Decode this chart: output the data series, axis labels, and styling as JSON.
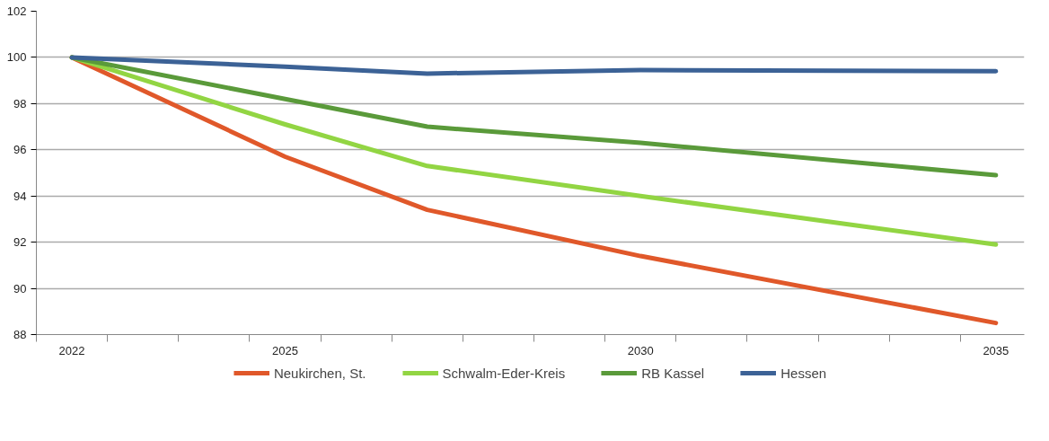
{
  "chart_data": {
    "type": "line",
    "x": [
      2022,
      2025,
      2027,
      2030,
      2035
    ],
    "series": [
      {
        "name": "Neukirchen, St.",
        "color": "#e0582a",
        "values": [
          100,
          95.7,
          93.4,
          91.4,
          88.5
        ]
      },
      {
        "name": "Schwalm-Eder-Kreis",
        "color": "#92d543",
        "values": [
          100,
          97.1,
          95.3,
          94.0,
          91.9
        ]
      },
      {
        "name": "RB Kassel",
        "color": "#5a9a3a",
        "values": [
          100,
          98.2,
          97.0,
          96.3,
          94.9
        ]
      },
      {
        "name": "Hessen",
        "color": "#3c6296",
        "values": [
          100,
          99.6,
          99.3,
          99.45,
          99.4
        ]
      }
    ],
    "xlim": [
      2021.5,
      2035.4
    ],
    "xticks": [
      {
        "value": 2021.5,
        "label": null
      },
      2022,
      {
        "value": 2022.5,
        "label": null
      },
      {
        "value": 2023.5,
        "label": null
      },
      {
        "value": 2024.5,
        "label": null
      },
      2025,
      {
        "value": 2025.5,
        "label": null
      },
      {
        "value": 2026.5,
        "label": null
      },
      {
        "value": 2027.5,
        "label": null
      },
      {
        "value": 2028.5,
        "label": null
      },
      {
        "value": 2029.5,
        "label": null
      },
      2030,
      {
        "value": 2030.5,
        "label": null
      },
      {
        "value": 2031.5,
        "label": null
      },
      {
        "value": 2032.5,
        "label": null
      },
      {
        "value": 2033.5,
        "label": null
      },
      {
        "value": 2034.5,
        "label": null
      },
      2035
    ],
    "ylim": [
      88,
      102
    ],
    "yticks": [
      88,
      90,
      92,
      94,
      96,
      98,
      100,
      102
    ],
    "grid": "y",
    "legend": "bottom",
    "marker": "none",
    "line_style": "solid"
  }
}
